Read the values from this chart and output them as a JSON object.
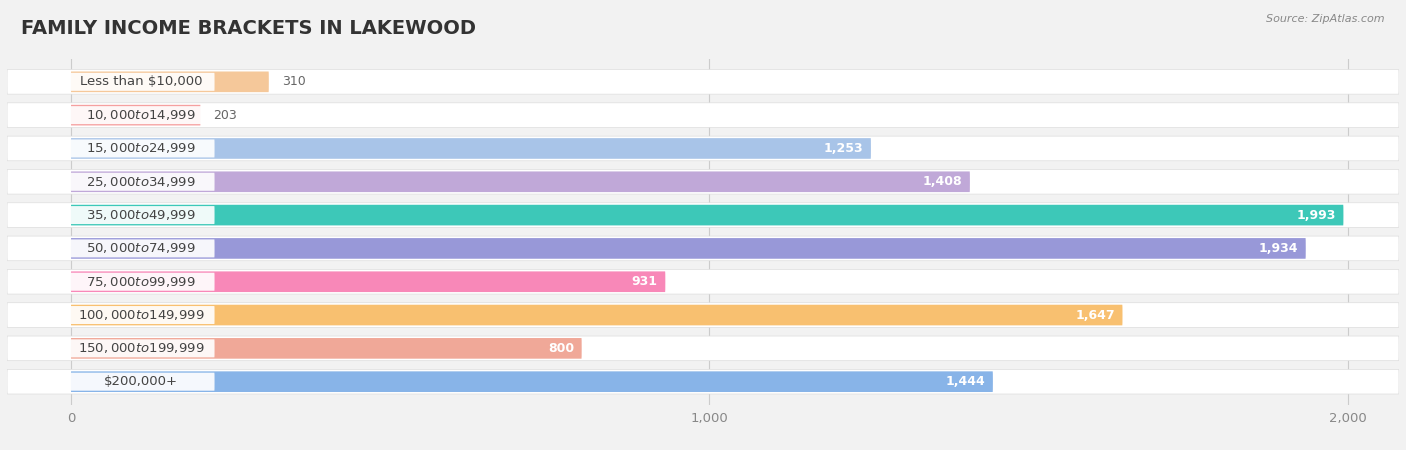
{
  "title": "FAMILY INCOME BRACKETS IN LAKEWOOD",
  "source": "Source: ZipAtlas.com",
  "categories": [
    "Less than $10,000",
    "$10,000 to $14,999",
    "$15,000 to $24,999",
    "$25,000 to $34,999",
    "$35,000 to $49,999",
    "$50,000 to $74,999",
    "$75,000 to $99,999",
    "$100,000 to $149,999",
    "$150,000 to $199,999",
    "$200,000+"
  ],
  "values": [
    310,
    203,
    1253,
    1408,
    1993,
    1934,
    931,
    1647,
    800,
    1444
  ],
  "bar_colors": [
    "#f5c89a",
    "#f5a0a0",
    "#a8c4e8",
    "#c0a8d8",
    "#3dc8b8",
    "#9898d8",
    "#f888b8",
    "#f8c070",
    "#f0a898",
    "#88b4e8"
  ],
  "xlim_min": -100,
  "xlim_max": 2080,
  "xticks": [
    0,
    1000,
    2000
  ],
  "xlabel_labels": [
    "0",
    "1,000",
    "2,000"
  ],
  "background_color": "#f2f2f2",
  "row_bg_color": "#e8e8e8",
  "title_fontsize": 14,
  "label_fontsize": 9.5,
  "value_fontsize": 9
}
